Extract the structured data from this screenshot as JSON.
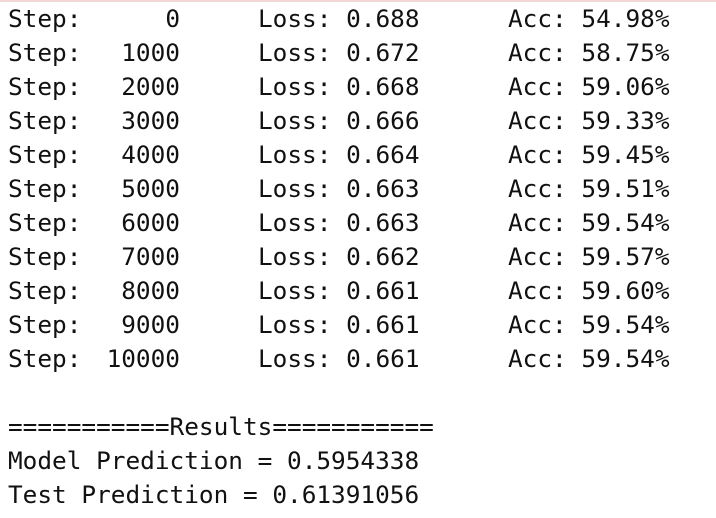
{
  "training_log": [
    {
      "step_label": "Step:",
      "step": "0",
      "loss": "Loss: 0.688",
      "acc": "Acc: 54.98%"
    },
    {
      "step_label": "Step:",
      "step": "1000",
      "loss": "Loss: 0.672",
      "acc": "Acc: 58.75%"
    },
    {
      "step_label": "Step:",
      "step": "2000",
      "loss": "Loss: 0.668",
      "acc": "Acc: 59.06%"
    },
    {
      "step_label": "Step:",
      "step": "3000",
      "loss": "Loss: 0.666",
      "acc": "Acc: 59.33%"
    },
    {
      "step_label": "Step:",
      "step": "4000",
      "loss": "Loss: 0.664",
      "acc": "Acc: 59.45%"
    },
    {
      "step_label": "Step:",
      "step": "5000",
      "loss": "Loss: 0.663",
      "acc": "Acc: 59.51%"
    },
    {
      "step_label": "Step:",
      "step": "6000",
      "loss": "Loss: 0.663",
      "acc": "Acc: 59.54%"
    },
    {
      "step_label": "Step:",
      "step": "7000",
      "loss": "Loss: 0.662",
      "acc": "Acc: 59.57%"
    },
    {
      "step_label": "Step:",
      "step": "8000",
      "loss": "Loss: 0.661",
      "acc": "Acc: 59.60%"
    },
    {
      "step_label": "Step:",
      "step": "9000",
      "loss": "Loss: 0.661",
      "acc": "Acc: 59.54%"
    },
    {
      "step_label": "Step:",
      "step": "10000",
      "loss": "Loss: 0.661",
      "acc": "Acc: 59.54%"
    }
  ],
  "results": {
    "header": "===========Results===========",
    "model_prediction": "Model Prediction = 0.5954338",
    "test_prediction": "Test Prediction = 0.61391056"
  }
}
